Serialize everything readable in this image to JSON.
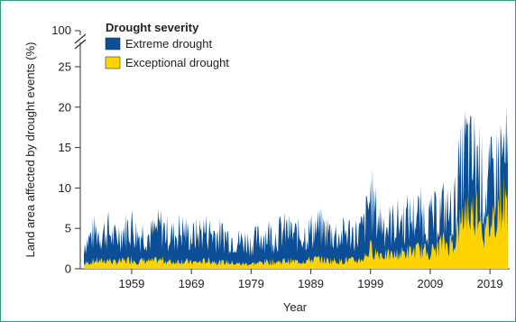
{
  "chart_data": {
    "type": "area",
    "stacked": true,
    "xlabel": "Year",
    "ylabel": "Land area affected by drought events (%)",
    "x_range": [
      1951,
      2022
    ],
    "x_ticks": [
      "1959",
      "1969",
      "1979",
      "1989",
      "1999",
      "2009",
      "2019"
    ],
    "y_ticks": [
      "0",
      "5",
      "10",
      "15",
      "20",
      "25"
    ],
    "y_break_label": "100",
    "ylim": [
      0,
      27
    ],
    "legend": {
      "title": "Drought severity",
      "placement": "top-left"
    },
    "series": [
      {
        "name": "Extreme drought",
        "color": "#0c4f97",
        "values": [
          3.1,
          3.8,
          4.6,
          4.2,
          4.9,
          3.6,
          4.4,
          4.8,
          5.4,
          4.1,
          4.5,
          4.0,
          4.6,
          5.2,
          4.3,
          4.1,
          4.7,
          4.6,
          3.9,
          4.2,
          4.8,
          4.5,
          4.3,
          4.1,
          4.0,
          3.7,
          3.4,
          3.5,
          3.2,
          3.6,
          4.1,
          4.3,
          4.0,
          4.5,
          4.7,
          4.2,
          4.1,
          4.3,
          4.6,
          5.0,
          4.8,
          4.5,
          4.2,
          4.0,
          4.6,
          4.4,
          4.3,
          5.2,
          9.0,
          6.5,
          5.8,
          5.2,
          5.6,
          5.9,
          6.1,
          6.3,
          6.6,
          6.4,
          5.9,
          6.4,
          7.5,
          6.8,
          7.2,
          11.5,
          14.5,
          12.5,
          14.0,
          9.0,
          10.5,
          12.0,
          14.0,
          13.0
        ]
      },
      {
        "name": "Exceptional drought",
        "color": "#ffd400",
        "values": [
          0.6,
          0.8,
          1.0,
          0.9,
          1.1,
          0.8,
          0.9,
          1.0,
          1.2,
          0.9,
          1.0,
          0.9,
          1.0,
          1.1,
          0.9,
          0.8,
          1.0,
          0.9,
          0.8,
          0.8,
          0.9,
          1.0,
          0.9,
          0.8,
          0.8,
          0.7,
          0.6,
          0.6,
          0.6,
          0.7,
          0.8,
          0.9,
          0.8,
          0.9,
          1.0,
          0.9,
          0.9,
          1.0,
          1.1,
          1.2,
          1.1,
          1.0,
          1.0,
          0.9,
          1.1,
          1.0,
          1.0,
          1.4,
          2.5,
          2.0,
          1.8,
          1.6,
          1.7,
          1.9,
          2.0,
          2.1,
          2.3,
          2.2,
          2.0,
          2.6,
          3.2,
          3.0,
          3.4,
          5.5,
          7.5,
          6.5,
          8.5,
          4.5,
          5.5,
          7.0,
          8.5,
          7.5
        ]
      }
    ]
  }
}
